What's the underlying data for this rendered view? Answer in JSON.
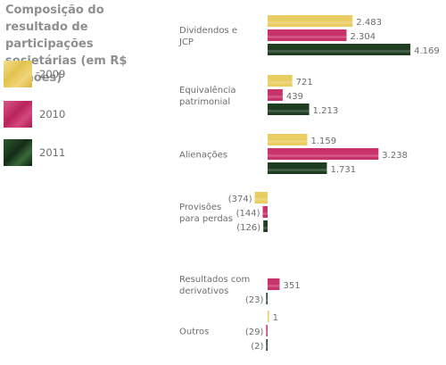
{
  "chart_data": {
    "type": "bar",
    "orientation": "horizontal",
    "title": "Composição do resultado de participações societárias (em R$ milhões)",
    "categories": [
      [
        "Dividendos e",
        "JCP"
      ],
      [
        "Equivalência",
        "patrimonial"
      ],
      [
        "Alienações"
      ],
      [
        "Provisões",
        "para perdas"
      ],
      [
        "Resultados com",
        "derivativos"
      ],
      [
        "Outros"
      ]
    ],
    "series": [
      {
        "name": "2009",
        "color": "#e9cd63",
        "values": [
          2483,
          721,
          1159,
          -374,
          null,
          1
        ],
        "labels": [
          "2.483",
          "721",
          "1.159",
          "(374)",
          "",
          "1"
        ]
      },
      {
        "name": "2010",
        "color": "#c8336c",
        "values": [
          2304,
          439,
          3238,
          -144,
          351,
          -29
        ],
        "labels": [
          "2.304",
          "439",
          "3.238",
          "(144)",
          "351",
          "(29)"
        ]
      },
      {
        "name": "2011",
        "color": "#1f3d21",
        "values": [
          4169,
          1213,
          1731,
          -126,
          -23,
          -2
        ],
        "labels": [
          "4.169",
          "1.213",
          "1.731",
          "(126)",
          "(23)",
          "(2)"
        ]
      }
    ],
    "legend_position": "left",
    "grid": false
  }
}
